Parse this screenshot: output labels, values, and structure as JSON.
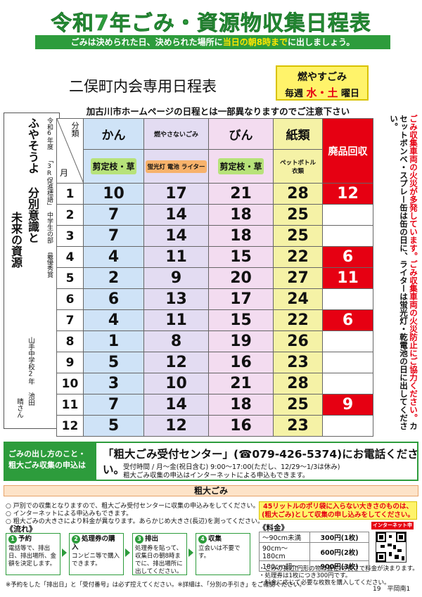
{
  "header": {
    "title": "令和7年ごみ・資源物収集日程表",
    "subtitle_pre": "ごみは決められた日、決められた場所に",
    "subtitle_highlight": "当日の朝8時まで",
    "subtitle_post": "に出しましょう。"
  },
  "area": {
    "title": "二俣町内会専用日程表",
    "burn_label": "燃やすごみ",
    "burn_prefix": "毎週",
    "burn_days": "水・土",
    "burn_suffix": "曜日",
    "note": "加古川市ホームページの日程とは一部異なりますのでご注意下さい"
  },
  "poster": {
    "year": "令和6年度",
    "campaign": "「3R促進標語」",
    "division": "中学生の部",
    "award": "最優秀賞",
    "slogan1": "ふやそうよ 分別意識と",
    "slogan2": "未来の資源",
    "school": "山手中学校2年 池田",
    "author": "晴さん"
  },
  "schedule": {
    "corner_top": "分類",
    "corner_bottom": "月",
    "columns": [
      {
        "header": "かん",
        "sub": "剪定枝・草",
        "color": "#cfe3f7",
        "sub_color": "#b7e27a"
      },
      {
        "header": "燃やさないごみ",
        "sub": "蛍光灯 電池 ライター",
        "color": "#e3dcf2",
        "sub_color": "#f7b26b"
      },
      {
        "header": "びん",
        "sub": "剪定枝・草",
        "color": "#f3dcf0",
        "sub_color": "#b7e27a"
      },
      {
        "header": "紙類",
        "sub": "ペットボトル 衣類",
        "color": "#f5f2a6",
        "sub_color": "#f5f2a6"
      },
      {
        "header": "廃品回収",
        "sub": "",
        "color": "#e60012",
        "sub_color": "#e60012"
      }
    ],
    "rows": [
      {
        "month": "1",
        "values": [
          "10",
          "17",
          "21",
          "28",
          "12"
        ]
      },
      {
        "month": "2",
        "values": [
          "7",
          "14",
          "18",
          "25",
          ""
        ]
      },
      {
        "month": "3",
        "values": [
          "7",
          "14",
          "18",
          "25",
          ""
        ]
      },
      {
        "month": "4",
        "values": [
          "4",
          "11",
          "15",
          "22",
          "6"
        ]
      },
      {
        "month": "5",
        "values": [
          "2",
          "9",
          "20",
          "27",
          "11"
        ]
      },
      {
        "month": "6",
        "values": [
          "6",
          "13",
          "17",
          "24",
          ""
        ]
      },
      {
        "month": "7",
        "values": [
          "4",
          "11",
          "15",
          "22",
          "6"
        ]
      },
      {
        "month": "8",
        "values": [
          "1",
          "8",
          "19",
          "26",
          ""
        ]
      },
      {
        "month": "9",
        "values": [
          "5",
          "12",
          "16",
          "23",
          ""
        ]
      },
      {
        "month": "10",
        "values": [
          "3",
          "10",
          "21",
          "28",
          ""
        ]
      },
      {
        "month": "11",
        "values": [
          "7",
          "14",
          "18",
          "25",
          "9"
        ]
      },
      {
        "month": "12",
        "values": [
          "5",
          "12",
          "16",
          "23",
          ""
        ]
      }
    ]
  },
  "side_note": {
    "line1": "ごみ収集車両の火災が多発しています。",
    "line2": "ごみ収集車両の火災防止にご協力ください。",
    "line3": "カセットボンベ・スプレー缶は缶の日に、ライターは蛍光灯・乾電池の日に出してください。"
  },
  "contact": {
    "label1": "ごみの出し方のこと・",
    "label2": "粗大ごみ収集の申込は",
    "main": "「粗大ごみ受付センター」(☎079-426-5374)にお電話ください。",
    "hours": "受付時間 / 月～金(祝日含む) 9:00～17:00(ただし、12/29～1/3は休み)",
    "net": "粗大ごみ収集の申込はインターネットによる申込もできます。"
  },
  "bulky": {
    "title": "粗大ごみ",
    "line1": "○ 戸別での収集となりますので、粗大ごみ受付センターに収集の申込みをしてください。",
    "line2": "○ インターネットによる申込みもできます。",
    "line3": "○ 粗大ごみの大きさにより料金が異なります。あらかじめ大きさ(長辺)を測ってください。",
    "warning1": "45リットルのポリ袋に入らない大きさのものは、",
    "warning2": "(粗大ごみ)として収集の申し込みをしてください。"
  },
  "flow": {
    "label": "《流れ》",
    "steps": [
      {
        "num": "1",
        "title": "予約",
        "text": "電話等で、排出日、排出場所、金額を決定します。"
      },
      {
        "num": "2",
        "title": "処理券の購入",
        "text": "コンビニ等で購入できます。"
      },
      {
        "num": "3",
        "title": "排出",
        "text": "処理券を貼って、収集日の朝8時までに、排出場所に出してください。"
      },
      {
        "num": "4",
        "title": "収集",
        "text": "立会いは不要です。"
      }
    ]
  },
  "fees": {
    "label": "《料金》",
    "net_badge": "インターネット申込",
    "rows": [
      {
        "size": "～90cm未満",
        "price": "300円(1枚)"
      },
      {
        "size": "90cm～180cm",
        "price": "600円(2枚)"
      },
      {
        "size": "180cm超～",
        "price": "900円(3枚)"
      }
    ],
    "note1": "・ごみの長辺(円形の物は直径)の長さで料金が決まります。",
    "note2": "・処理券は1枚につき300円です。",
    "note3": "・料金に応じて必要な枚数を購入してください。"
  },
  "footer": {
    "note": "※予約をした「排出日」と「受付番号」は必ず控えてください。※詳細は、「分別の手引き」をご確認ください。",
    "page": "19　平岡南1"
  }
}
